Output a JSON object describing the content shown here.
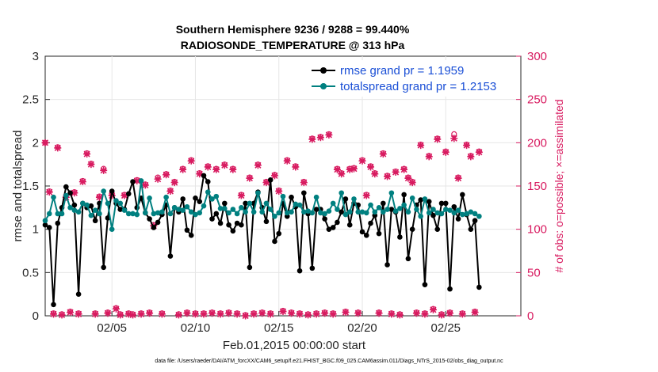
{
  "chart_data": {
    "type": "line",
    "title_line1": "Southern Hemisphere 9236 / 9288 = 99.440%",
    "title_line2": "RADIOSONDE_TEMPERATURE @ 313 hPa",
    "xlabel": "Feb.01,2015 00:00:00 start",
    "ylabel": "rmse and totalspread",
    "ylabel_right": "# of obs: o=possible; ×=assimilated",
    "footnote": "data file: /Users/raeder/DAI/ATM_forcXX/CAM6_setup/f.e21.FHIST_BGC.f09_025.CAM6assim.011/Diags_NTrS_2015-02/obs_diag_output.nc",
    "xlim": [
      1.0,
      29.5
    ],
    "ylim": [
      0,
      3
    ],
    "ylim_right": [
      0,
      300
    ],
    "x_ticks": [
      5,
      10,
      15,
      20,
      25
    ],
    "x_tick_labels": [
      "02/05",
      "02/10",
      "02/15",
      "02/20",
      "02/25"
    ],
    "y_ticks": [
      0,
      0.5,
      1,
      1.5,
      2,
      2.5,
      3
    ],
    "y_tick_labels": [
      "0",
      "0.5",
      "1",
      "1.5",
      "2",
      "2.5",
      "3"
    ],
    "y_right_ticks": [
      0,
      50,
      100,
      150,
      200,
      250,
      300
    ],
    "y_right_tick_labels": [
      "0",
      "50",
      "100",
      "150",
      "200",
      "250",
      "300"
    ],
    "x_start": 1.0,
    "x_step": 0.25,
    "legend": [
      "rmse grand pr = 1.1959",
      "totalspread grand pr = 1.2153"
    ],
    "legend_position": "top-right",
    "colors": {
      "rmse": "#000000",
      "spread": "#008080",
      "obs": "#d81b60",
      "legend_text": "#1a4fd6"
    },
    "series": [
      {
        "name": "rmse",
        "values": [
          1.05,
          1.02,
          0.13,
          1.07,
          1.25,
          1.49,
          1.42,
          1.28,
          0.25,
          1.3,
          1.25,
          1.27,
          1.1,
          1.3,
          0.56,
          1.13,
          1.44,
          1.3,
          1.23,
          1.23,
          1.41,
          1.55,
          1.25,
          1.36,
          1.19,
          1.12,
          1.02,
          1.08,
          1.17,
          1.28,
          0.69,
          1.25,
          1.2,
          1.35,
          0.99,
          0.93,
          1.36,
          1.32,
          1.62,
          1.55,
          1.12,
          1.18,
          1.07,
          1.3,
          1.05,
          0.98,
          1.07,
          1.05,
          1.3,
          0.56,
          1.3,
          1.43,
          1.25,
          1.09,
          1.57,
          0.86,
          0.95,
          1.3,
          1.15,
          1.37,
          1.26,
          0.52,
          1.42,
          1.18,
          0.55,
          1.23,
          1.23,
          1.12,
          1.0,
          1.02,
          1.08,
          1.2,
          1.35,
          1.05,
          1.3,
          1.28,
          0.97,
          0.93,
          1.07,
          1.16,
          0.95,
          1.3,
          0.59,
          1.23,
          1.2,
          0.91,
          1.4,
          0.66,
          1.0,
          1.28,
          1.34,
          0.36,
          1.32,
          1.16,
          1.0,
          1.3,
          1.3,
          0.31,
          1.26,
          1.12,
          1.4,
          1.17,
          1.0,
          1.1,
          0.33
        ]
      },
      {
        "name": "totalspread",
        "values": [
          1.1,
          1.18,
          1.37,
          1.18,
          1.18,
          1.39,
          1.25,
          1.22,
          1.2,
          1.3,
          1.28,
          1.16,
          1.22,
          1.18,
          1.44,
          1.3,
          1.0,
          1.33,
          1.3,
          1.22,
          1.18,
          1.18,
          1.17,
          1.56,
          1.19,
          1.36,
          1.18,
          1.19,
          1.2,
          1.37,
          1.18,
          1.25,
          1.23,
          1.22,
          1.26,
          1.2,
          1.17,
          1.19,
          1.27,
          1.43,
          1.35,
          1.38,
          1.24,
          1.24,
          1.19,
          1.23,
          1.18,
          1.25,
          1.2,
          1.3,
          1.2,
          1.42,
          1.2,
          1.3,
          1.23,
          1.15,
          1.19,
          1.38,
          1.19,
          1.2,
          1.29,
          1.28,
          1.2,
          1.21,
          1.19,
          1.37,
          1.19,
          1.18,
          1.21,
          1.3,
          1.23,
          1.42,
          1.17,
          1.2,
          1.35,
          1.2,
          1.2,
          1.19,
          1.28,
          1.2,
          1.25,
          1.2,
          1.23,
          1.42,
          1.21,
          1.24,
          1.28,
          1.2,
          1.36,
          1.23,
          1.15,
          1.35,
          1.19,
          1.23,
          1.19,
          1.18,
          1.23,
          1.22,
          1.19,
          1.22,
          1.17,
          1.18,
          1.2,
          1.18,
          1.15
        ]
      },
      {
        "name": "obs_possible",
        "axis": "right",
        "values": [
          200,
          144,
          3,
          195,
          2,
          138,
          5,
          143,
          3,
          156,
          188,
          176,
          3,
          138,
          170,
          4,
          140,
          9,
          2,
          140,
          3,
          2,
          157,
          3,
          152,
          4,
          105,
          160,
          3,
          164,
          145,
          155,
          2,
          170,
          4,
          180,
          3,
          165,
          3,
          173,
          4,
          170,
          3,
          175,
          4,
          170,
          3,
          140,
          1,
          160,
          3,
          175,
          4,
          155,
          3,
          163,
          145,
          6,
          180,
          4,
          173,
          3,
          155,
          2,
          205,
          3,
          207,
          4,
          210,
          3,
          170,
          165,
          5,
          170,
          171,
          4,
          180,
          140,
          173,
          165,
          4,
          188,
          162,
          3,
          167,
          2,
          170,
          160,
          155,
          4,
          198,
          3,
          185,
          8,
          205,
          2,
          190,
          4,
          210,
          160,
          3,
          198,
          185,
          5,
          190
        ]
      },
      {
        "name": "obs_assimilated",
        "axis": "right",
        "values": [
          200,
          143,
          2,
          194,
          1,
          137,
          4,
          142,
          2,
          155,
          187,
          175,
          2,
          137,
          168,
          3,
          139,
          8,
          1,
          139,
          2,
          1,
          156,
          2,
          151,
          3,
          104,
          158,
          2,
          163,
          144,
          154,
          1,
          169,
          3,
          179,
          2,
          164,
          2,
          172,
          3,
          169,
          2,
          174,
          3,
          169,
          2,
          139,
          0,
          159,
          2,
          174,
          3,
          154,
          2,
          162,
          144,
          5,
          179,
          3,
          172,
          2,
          154,
          1,
          204,
          2,
          206,
          3,
          209,
          2,
          169,
          164,
          4,
          169,
          170,
          3,
          179,
          139,
          172,
          164,
          3,
          187,
          161,
          2,
          166,
          1,
          169,
          159,
          154,
          3,
          197,
          2,
          184,
          7,
          204,
          1,
          189,
          3,
          205,
          159,
          2,
          197,
          184,
          4,
          189
        ]
      }
    ]
  }
}
